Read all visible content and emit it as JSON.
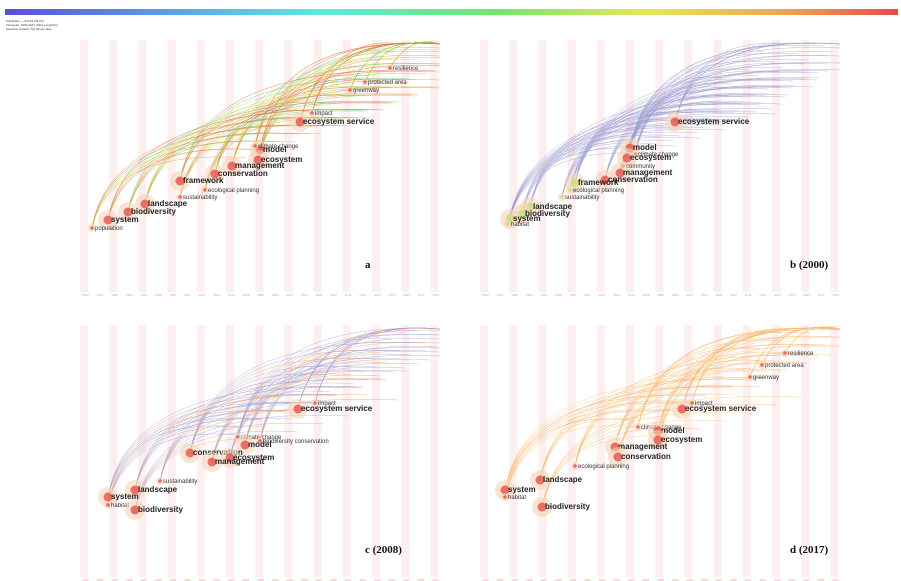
{
  "info": [
    "CiteSpace, v. 5.6.R1 (64-bit)",
    "Timespan: 1993-2017 (Slice Length=1)",
    "Selection Criteria: Top 50 per slice"
  ],
  "years": [
    "1993",
    "1994",
    "1995",
    "1996",
    "1997",
    "1998",
    "1999",
    "2000",
    "2001",
    "2002",
    "2003",
    "2004",
    "2005",
    "2006",
    "2007",
    "2008",
    "2009",
    "2010",
    "2011",
    "2012",
    "2013",
    "2014",
    "2015",
    "2016",
    "2017"
  ],
  "panels": [
    {
      "label": "a",
      "keywords": [
        "impact",
        "ecosystem service",
        "resilience",
        "protected area",
        "greenway",
        "model",
        "climate change",
        "ecosystem",
        "management",
        "conservation",
        "framework",
        "ecological planning",
        "sustainability",
        "landscape",
        "biodiversity",
        "system",
        "population"
      ]
    },
    {
      "label": "b (2000)",
      "keywords": [
        "ecosystem service",
        "model",
        "climate change",
        "ecosystem",
        "community",
        "management",
        "conservation",
        "framework",
        "ecological planning",
        "sustainability",
        "landscape",
        "biodiversity",
        "system",
        "habitat"
      ]
    },
    {
      "label": "c (2008)",
      "keywords": [
        "impact",
        "ecosystem service",
        "climate change",
        "biodiversity conservation",
        "model",
        "conservation",
        "ecosystem",
        "management",
        "sustainability",
        "landscape",
        "system",
        "habitat",
        "biodiversity"
      ]
    },
    {
      "label": "d (2017)",
      "keywords": [
        "impact",
        "ecosystem service",
        "climate change",
        "model",
        "ecosystem",
        "management",
        "conservation",
        "ecological planning",
        "landscape",
        "system",
        "habitat",
        "biodiversity",
        "resilience",
        "protected area",
        "greenway"
      ]
    }
  ]
}
